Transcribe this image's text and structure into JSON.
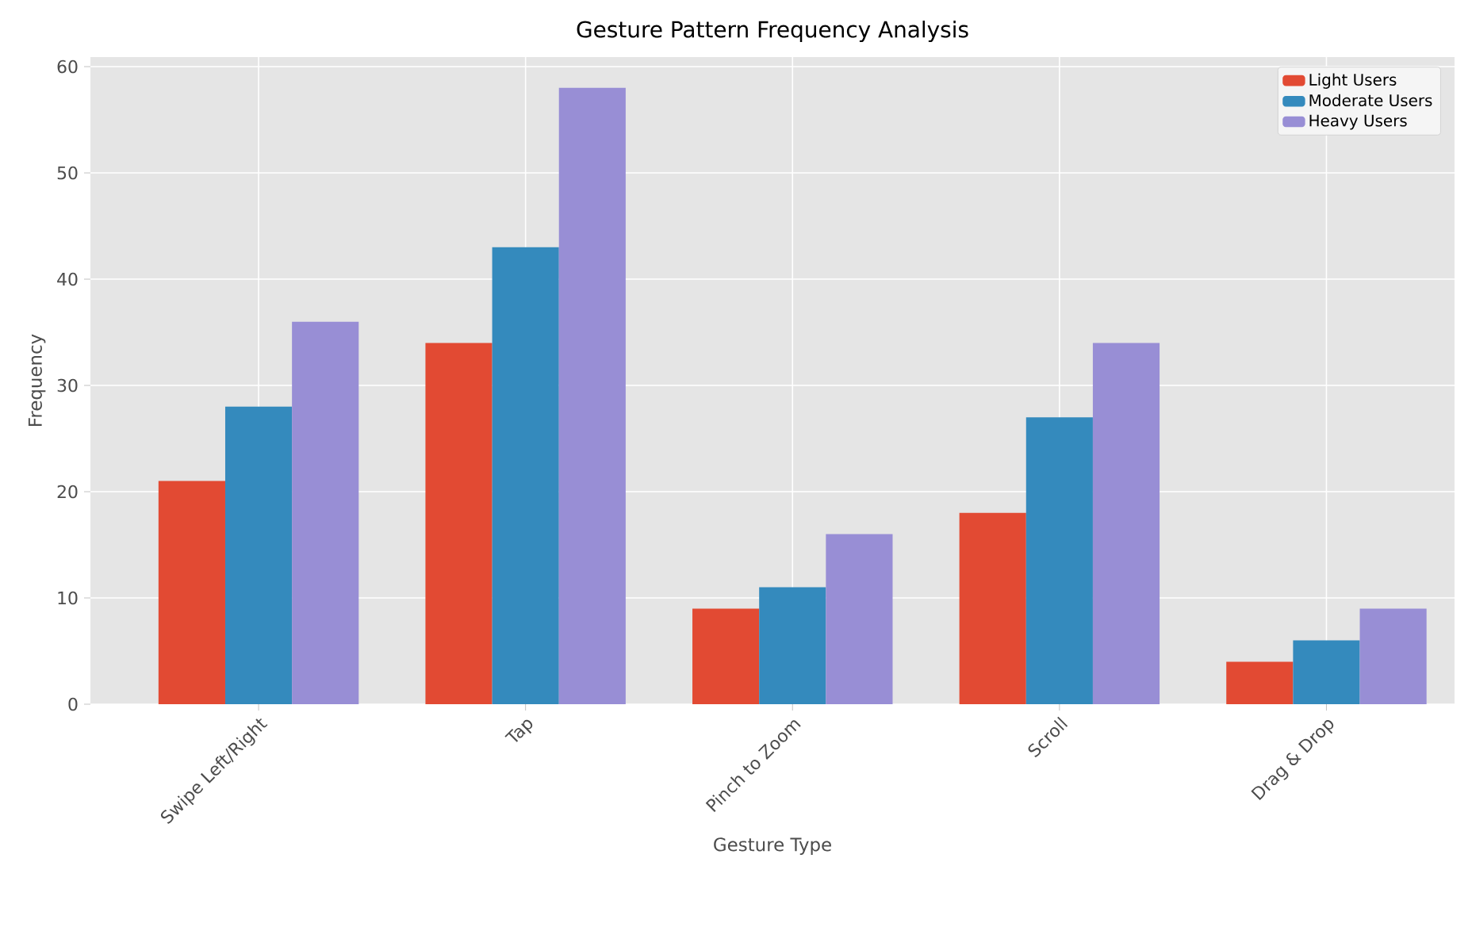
{
  "chart_data": {
    "type": "bar",
    "title": "Gesture Pattern Frequency Analysis",
    "xlabel": "Gesture Type",
    "ylabel": "Frequency",
    "categories": [
      "Swipe Left/Right",
      "Tap",
      "Pinch to Zoom",
      "Scroll",
      "Drag & Drop"
    ],
    "series": [
      {
        "name": "Light Users",
        "color": "#e24a33",
        "values": [
          21,
          34,
          9,
          18,
          4
        ]
      },
      {
        "name": "Moderate Users",
        "color": "#348abd",
        "values": [
          28,
          43,
          11,
          27,
          6
        ]
      },
      {
        "name": "Heavy Users",
        "color": "#988ed5",
        "values": [
          36,
          58,
          16,
          34,
          9
        ]
      }
    ],
    "ylim": [
      0,
      60.9
    ],
    "yticks": [
      0,
      10,
      20,
      30,
      40,
      50,
      60
    ],
    "grid": true,
    "legend": "top right"
  }
}
